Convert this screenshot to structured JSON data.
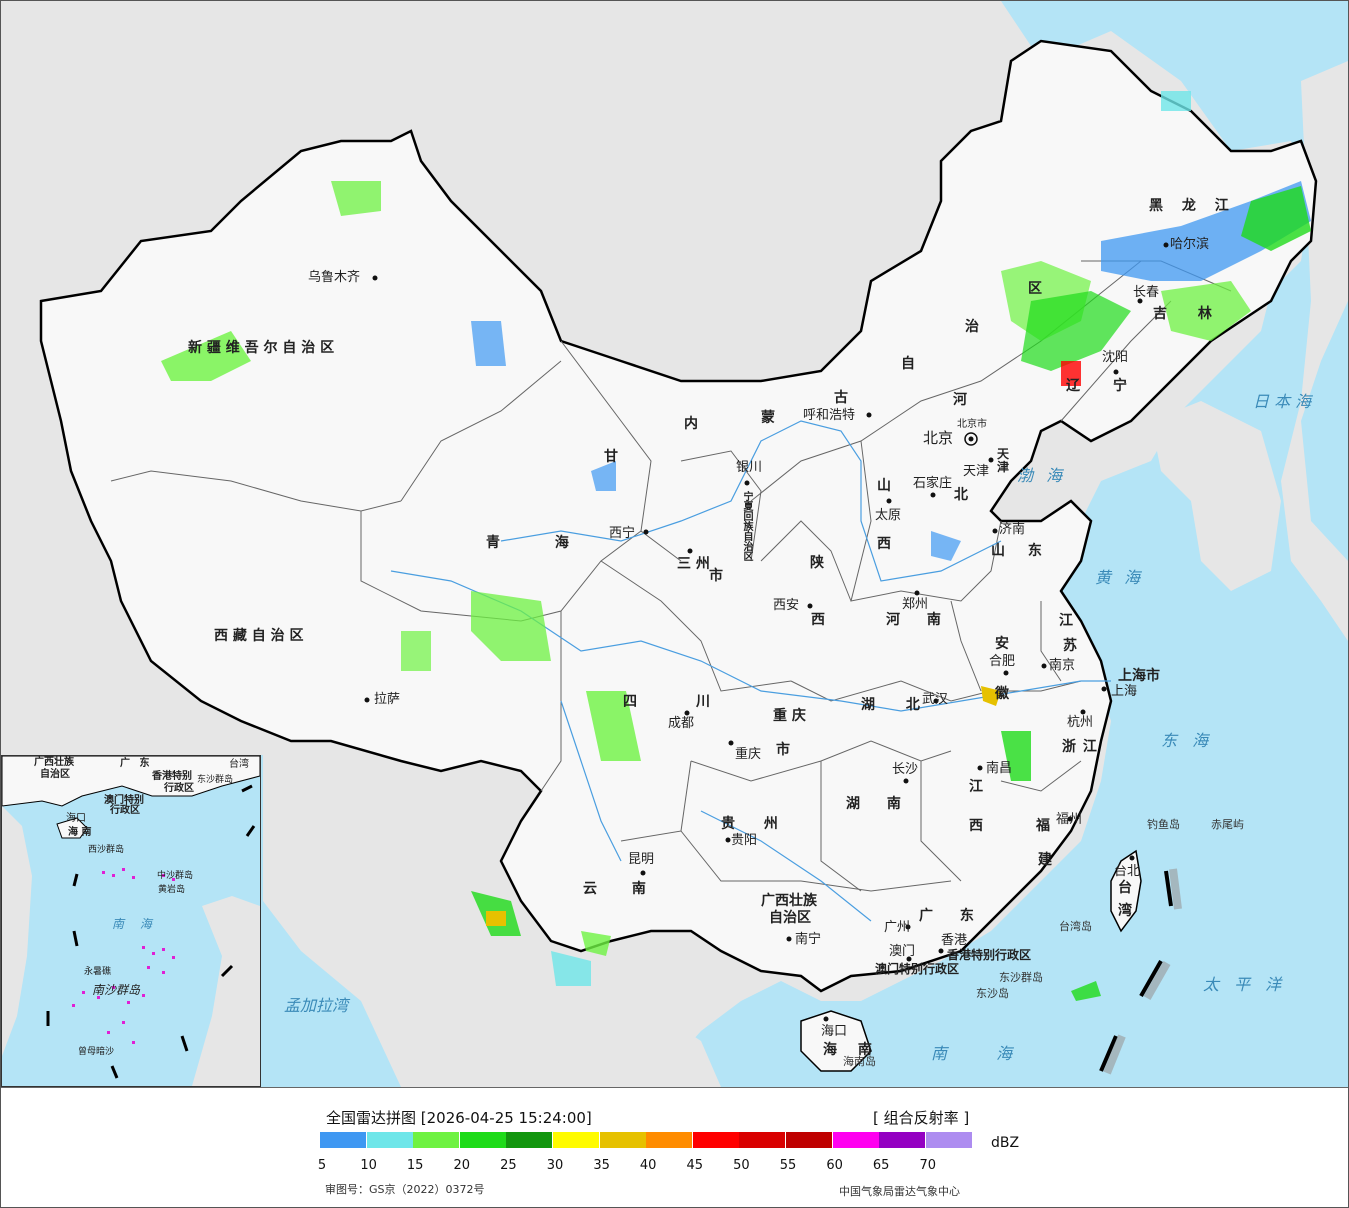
{
  "map": {
    "provinces": [
      {
        "name": "新 疆 维 吾 尔 自 治 区"
      },
      {
        "name": "西 藏 自 治 区"
      },
      {
        "name": "青 海"
      },
      {
        "name": "甘"
      },
      {
        "name": "内"
      },
      {
        "name": "蒙"
      },
      {
        "name": "古"
      },
      {
        "name": "自"
      },
      {
        "name": "治"
      },
      {
        "name": "区"
      },
      {
        "name": "黑 龙 江"
      },
      {
        "name": "吉 林"
      },
      {
        "name": "辽"
      },
      {
        "name": "宁"
      },
      {
        "name": "河"
      },
      {
        "name": "北"
      },
      {
        "name": "山"
      },
      {
        "name": "西"
      },
      {
        "name": "陕"
      },
      {
        "name": "西"
      },
      {
        "name": "山 东"
      },
      {
        "name": "河 南"
      },
      {
        "name": "江"
      },
      {
        "name": "苏"
      },
      {
        "name": "安"
      },
      {
        "name": "徽"
      },
      {
        "name": "四"
      },
      {
        "name": "川"
      },
      {
        "name": "重 庆"
      },
      {
        "name": "市"
      },
      {
        "name": "湖 北"
      },
      {
        "name": "湖 南"
      },
      {
        "name": "江"
      },
      {
        "name": "西"
      },
      {
        "name": "浙 江"
      },
      {
        "name": "福"
      },
      {
        "name": "建"
      },
      {
        "name": "贵 州"
      },
      {
        "name": "云 南"
      },
      {
        "name": "广西壮族"
      },
      {
        "name": "自治区"
      },
      {
        "name": "广 东"
      },
      {
        "name": "海 南"
      },
      {
        "name": "台"
      },
      {
        "name": "湾"
      },
      {
        "name": "上海市"
      },
      {
        "name": "天"
      },
      {
        "name": "津"
      },
      {
        "name": "北京市"
      },
      {
        "name": "宁夏回族自治区"
      },
      {
        "name": "三 州"
      },
      {
        "name": "市"
      },
      {
        "name": "香港特别行政区"
      },
      {
        "name": "澳门特别行政区"
      }
    ],
    "cities": [
      {
        "name": "乌鲁木齐"
      },
      {
        "name": "拉萨"
      },
      {
        "name": "西宁"
      },
      {
        "name": "三州"
      },
      {
        "name": "银川"
      },
      {
        "name": "呼和浩特"
      },
      {
        "name": "北京"
      },
      {
        "name": "天津"
      },
      {
        "name": "石家庄"
      },
      {
        "name": "太原"
      },
      {
        "name": "济南"
      },
      {
        "name": "郑州"
      },
      {
        "name": "西安"
      },
      {
        "name": "哈尔滨"
      },
      {
        "name": "长春"
      },
      {
        "name": "沈阳"
      },
      {
        "name": "南京"
      },
      {
        "name": "合肥"
      },
      {
        "name": "上海"
      },
      {
        "name": "杭州"
      },
      {
        "name": "武汉"
      },
      {
        "name": "成都"
      },
      {
        "name": "重庆"
      },
      {
        "name": "长沙"
      },
      {
        "name": "南昌"
      },
      {
        "name": "福州"
      },
      {
        "name": "贵阳"
      },
      {
        "name": "昆明"
      },
      {
        "name": "南宁"
      },
      {
        "name": "广州"
      },
      {
        "name": "香港"
      },
      {
        "name": "澳门"
      },
      {
        "name": "海口"
      },
      {
        "name": "台北"
      }
    ],
    "seas": [
      {
        "name": "渤 海"
      },
      {
        "name": "黄 海"
      },
      {
        "name": "东 海"
      },
      {
        "name": "日 本 海"
      },
      {
        "name": "太 平 洋"
      },
      {
        "name": "南 海"
      },
      {
        "name": "孟加拉湾"
      }
    ],
    "islands": [
      {
        "name": "钓鱼岛"
      },
      {
        "name": "赤尾屿"
      },
      {
        "name": "台湾岛"
      },
      {
        "name": "东沙群岛"
      },
      {
        "name": "东沙岛"
      },
      {
        "name": "海南岛"
      }
    ],
    "inset_labels": [
      {
        "name": "广西壮族"
      },
      {
        "name": "自治区"
      },
      {
        "name": "广 东"
      },
      {
        "name": "香港特别"
      },
      {
        "name": "行政区"
      },
      {
        "name": "澳门特别"
      },
      {
        "name": "行政区"
      },
      {
        "name": "台湾"
      },
      {
        "name": "东沙群岛"
      },
      {
        "name": "海口"
      },
      {
        "name": "海 南"
      },
      {
        "name": "西沙群岛"
      },
      {
        "name": "中沙群岛"
      },
      {
        "name": "黄岩岛"
      },
      {
        "name": "南 海"
      },
      {
        "name": "永暑礁"
      },
      {
        "name": "南沙群岛"
      },
      {
        "name": "曾母暗沙"
      }
    ]
  },
  "legend": {
    "title": "全国雷达拼图 [2026-04-25 15:24:00]",
    "product": "[ 组合反射率 ]",
    "unit": "dBZ",
    "colors": [
      "#3f98f2",
      "#6ee6e9",
      "#6ef242",
      "#1edb19",
      "#12960e",
      "#fffb00",
      "#e6c100",
      "#ff8c00",
      "#ff0000",
      "#d90000",
      "#bf0000",
      "#ff00f0",
      "#9400c2",
      "#ad8cf0"
    ],
    "ticks": [
      "5",
      "10",
      "15",
      "20",
      "25",
      "30",
      "35",
      "40",
      "45",
      "50",
      "55",
      "60",
      "65",
      "70"
    ],
    "approval": "审图号：GS京（2022）0372号",
    "credit": "中国气象局雷达气象中心"
  }
}
